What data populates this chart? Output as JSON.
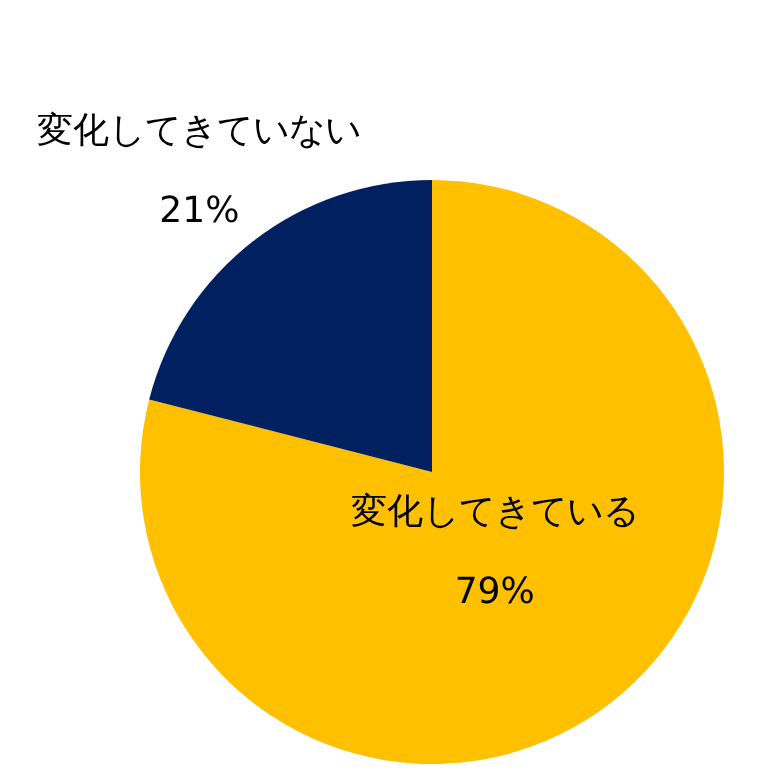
{
  "chart_data": {
    "type": "pie",
    "categories": [
      "変化してきている",
      "変化してきていない"
    ],
    "values": [
      79,
      21
    ],
    "colors": [
      "#ffc000",
      "#002060"
    ],
    "value_labels": [
      "79%",
      "21%"
    ]
  }
}
